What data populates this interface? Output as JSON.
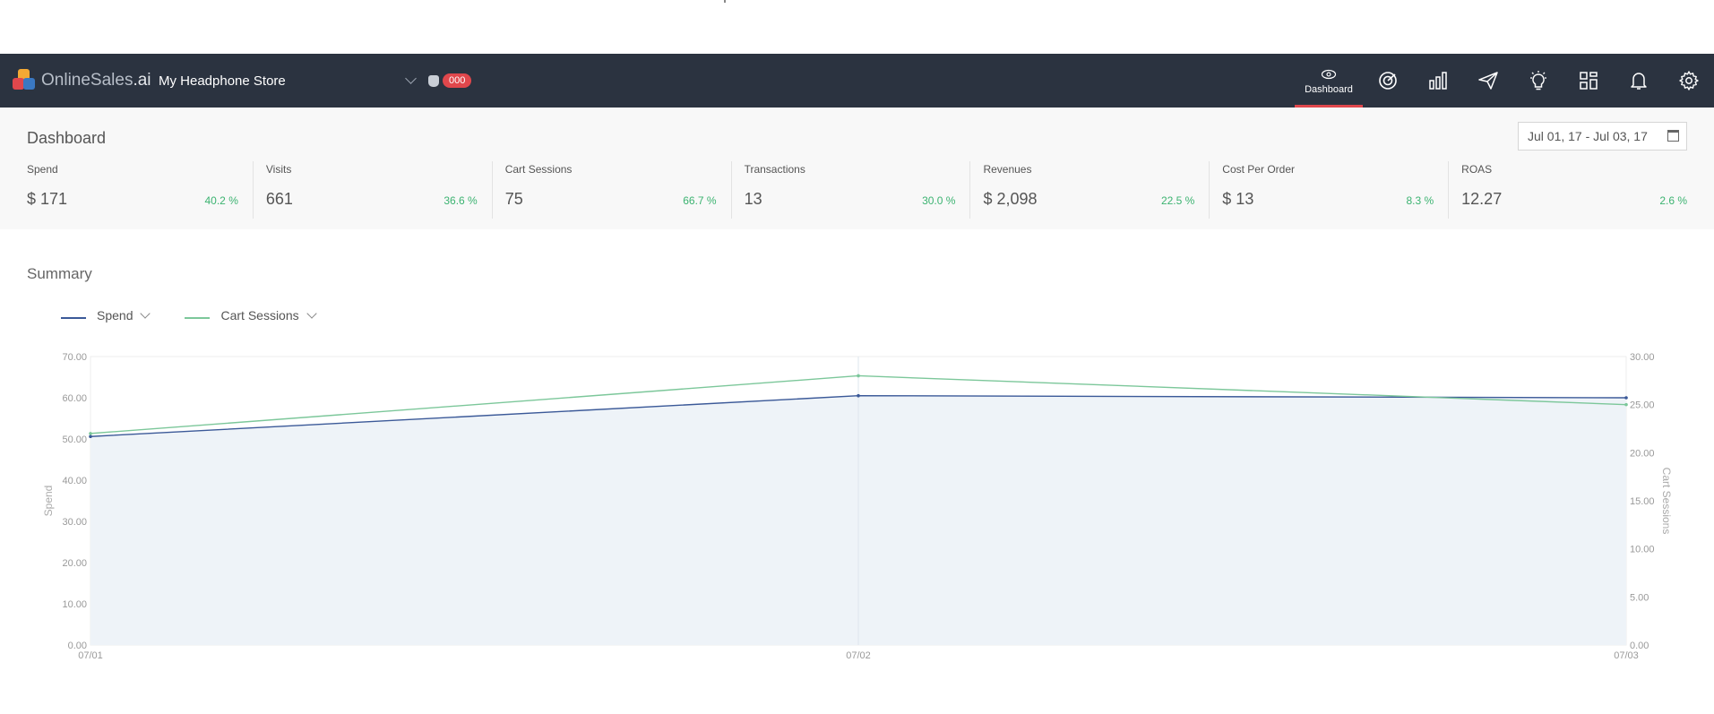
{
  "navbar": {
    "brand_main": "OnlineSales",
    "brand_suffix": ".ai",
    "store_name": "My Headphone Store",
    "credits_badge": "000",
    "icons": [
      {
        "name": "dashboard-icon",
        "label": "Dashboard",
        "active": true
      },
      {
        "name": "target-icon"
      },
      {
        "name": "bar-chart-icon"
      },
      {
        "name": "send-icon"
      },
      {
        "name": "lightbulb-icon"
      },
      {
        "name": "grid-icon"
      },
      {
        "name": "bell-icon"
      },
      {
        "name": "gear-icon"
      }
    ]
  },
  "dashboard": {
    "title": "Dashboard",
    "date_range": "Jul 01, 17 - Jul 03, 17",
    "kpis": [
      {
        "label": "Spend",
        "value": "$ 171",
        "change": "40.2 %"
      },
      {
        "label": "Visits",
        "value": "661",
        "change": "36.6 %"
      },
      {
        "label": "Cart Sessions",
        "value": "75",
        "change": "66.7 %"
      },
      {
        "label": "Transactions",
        "value": "13",
        "change": "30.0 %"
      },
      {
        "label": "Revenues",
        "value": "$ 2,098",
        "change": "22.5 %"
      },
      {
        "label": "Cost Per Order",
        "value": "$ 13",
        "change": "8.3 %"
      },
      {
        "label": "ROAS",
        "value": "12.27",
        "change": "2.6 %"
      }
    ]
  },
  "summary": {
    "title": "Summary",
    "legend": [
      {
        "label": "Spend",
        "color": "#3b5998"
      },
      {
        "label": "Cart Sessions",
        "color": "#7cc79a"
      }
    ]
  },
  "chart_data": {
    "type": "line",
    "x": [
      "07/01",
      "07/02",
      "07/03"
    ],
    "series": [
      {
        "name": "Spend",
        "axis": "left",
        "values": [
          50.6,
          60.5,
          60.0
        ],
        "color": "#3b5998",
        "area": true
      },
      {
        "name": "Cart Sessions",
        "axis": "right",
        "values": [
          22.0,
          28.0,
          25.0
        ],
        "color": "#7cc79a"
      }
    ],
    "ylabel": "Spend",
    "y2label": "Cart Sessions",
    "ylim": [
      0,
      70
    ],
    "y2lim": [
      0,
      30
    ],
    "yticks": [
      "0.00",
      "10.00",
      "20.00",
      "30.00",
      "40.00",
      "50.00",
      "60.00",
      "70.00"
    ],
    "y2ticks": [
      "0.00",
      "5.00",
      "10.00",
      "15.00",
      "20.00",
      "25.00",
      "30.00"
    ],
    "grid": false,
    "area_color": "#eef3f8"
  }
}
